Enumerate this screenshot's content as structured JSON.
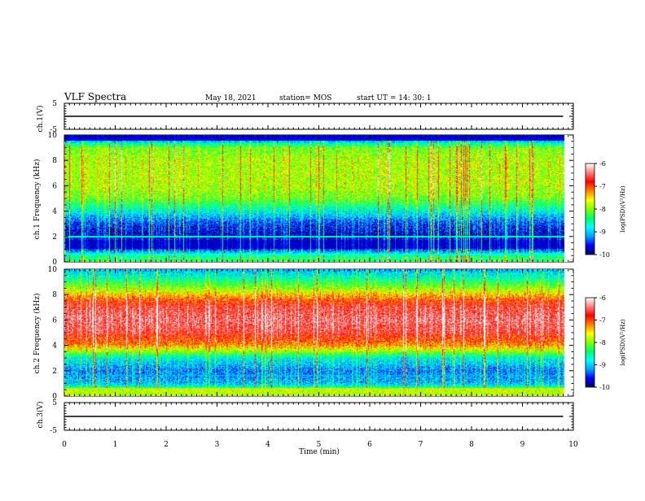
{
  "header": {
    "title": "VLF Spectra",
    "date": "May 18, 2021",
    "station": "station= MOS",
    "start": "start  UT =   14: 30: 1"
  },
  "colorbar": {
    "label": "log(PSD)(V²/Hz)",
    "ticks": [
      "-6",
      "-7",
      "-8",
      "-9",
      "-10"
    ],
    "colors": [
      "#000060",
      "#0000ff",
      "#00a0ff",
      "#00ffff",
      "#00ff60",
      "#80ff00",
      "#ffff00",
      "#ff8000",
      "#ff0000",
      "#ff8080",
      "#ffffff"
    ]
  },
  "chart_data": [
    {
      "type": "line",
      "panel": "ch.1 waveform",
      "ylabel": "ch.1(V)",
      "ylim": [
        -5,
        5
      ],
      "ytick_labels": [
        "5",
        "-5"
      ],
      "xlim": [
        0,
        10
      ],
      "series": [
        {
          "x": [
            0,
            9.8
          ],
          "values": [
            0,
            0
          ]
        }
      ]
    },
    {
      "type": "heatmap",
      "panel": "ch.1 spectrogram",
      "ylabel": "ch.1 Frequency (kHz)",
      "ylim": [
        0,
        10
      ],
      "ytick_labels": [
        "0",
        "2",
        "4",
        "6",
        "8",
        "10"
      ],
      "xlim": [
        0,
        10
      ],
      "color_range": [
        -10,
        -6
      ],
      "freq_profile_log_psd": [
        [
          0.0,
          -8.4
        ],
        [
          0.5,
          -8.6
        ],
        [
          1.0,
          -9.6
        ],
        [
          1.5,
          -9.6
        ],
        [
          2.0,
          -9.8
        ],
        [
          3.0,
          -9.5
        ],
        [
          4.0,
          -8.8
        ],
        [
          5.0,
          -8.1
        ],
        [
          6.0,
          -7.9
        ],
        [
          7.0,
          -7.9
        ],
        [
          8.0,
          -7.9
        ],
        [
          9.0,
          -8.1
        ],
        [
          9.5,
          -9.0
        ],
        [
          10.0,
          -9.6
        ]
      ]
    },
    {
      "type": "heatmap",
      "panel": "ch.2 spectrogram",
      "ylabel": "ch.2 Frequency (kHz)",
      "ylim": [
        0,
        10
      ],
      "ytick_labels": [
        "0",
        "2",
        "4",
        "6",
        "8",
        "10"
      ],
      "xlim": [
        0,
        10
      ],
      "color_range": [
        -10,
        -6
      ],
      "freq_profile_log_psd": [
        [
          0.0,
          -8.2
        ],
        [
          0.5,
          -8.4
        ],
        [
          1.0,
          -9.1
        ],
        [
          2.0,
          -9.3
        ],
        [
          3.0,
          -8.8
        ],
        [
          3.5,
          -8.0
        ],
        [
          4.0,
          -7.3
        ],
        [
          5.0,
          -6.7
        ],
        [
          6.0,
          -6.5
        ],
        [
          7.0,
          -6.7
        ],
        [
          7.5,
          -7.0
        ],
        [
          8.0,
          -7.5
        ],
        [
          8.5,
          -8.0
        ],
        [
          9.0,
          -8.4
        ],
        [
          9.5,
          -8.8
        ],
        [
          10.0,
          -9.1
        ]
      ]
    },
    {
      "type": "line",
      "panel": "ch.3 waveform",
      "ylabel": "ch.3(V)",
      "ylim": [
        -5,
        5
      ],
      "ytick_labels": [
        "5",
        "-5"
      ],
      "xlim": [
        0,
        10
      ],
      "xlabel": "Time (min)",
      "xtick_labels": [
        "0",
        "1",
        "2",
        "3",
        "4",
        "5",
        "6",
        "7",
        "8",
        "9",
        "10"
      ],
      "series": [
        {
          "x": [
            0,
            9.8
          ],
          "values": [
            0,
            0
          ]
        }
      ]
    }
  ]
}
